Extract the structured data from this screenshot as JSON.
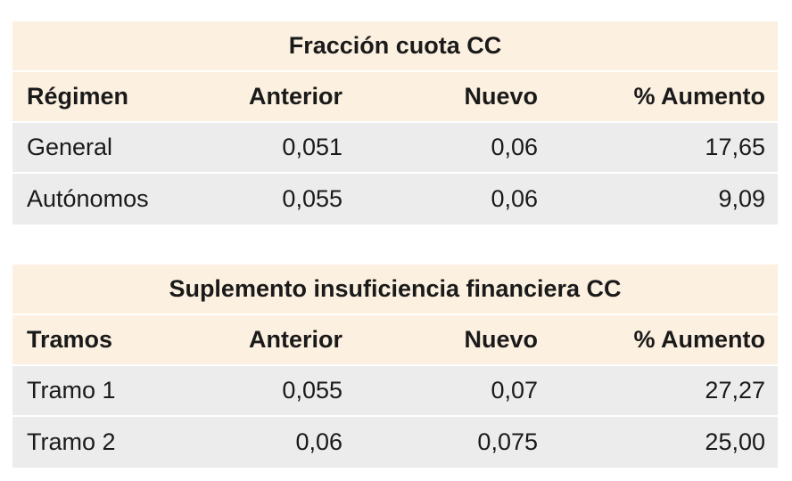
{
  "tables": [
    {
      "title": "Fracción cuota CC",
      "headers": [
        "Régimen",
        "Anterior",
        "Nuevo",
        "% Aumento"
      ],
      "rows": [
        [
          "General",
          "0,051",
          "0,06",
          "17,65"
        ],
        [
          "Autónomos",
          "0,055",
          "0,06",
          "9,09"
        ]
      ]
    },
    {
      "title": "Suplemento insuficiencia financiera CC",
      "headers": [
        "Tramos",
        "Anterior",
        "Nuevo",
        "% Aumento"
      ],
      "rows": [
        [
          "Tramo 1",
          "0,055",
          "0,07",
          "27,27"
        ],
        [
          "Tramo 2",
          "0,06",
          "0,075",
          "25,00"
        ]
      ]
    }
  ],
  "colors": {
    "header_bg": "#fcf0e0",
    "row_bg": "#ececec",
    "separator": "#ffffff",
    "text": "#1a1a1a"
  }
}
